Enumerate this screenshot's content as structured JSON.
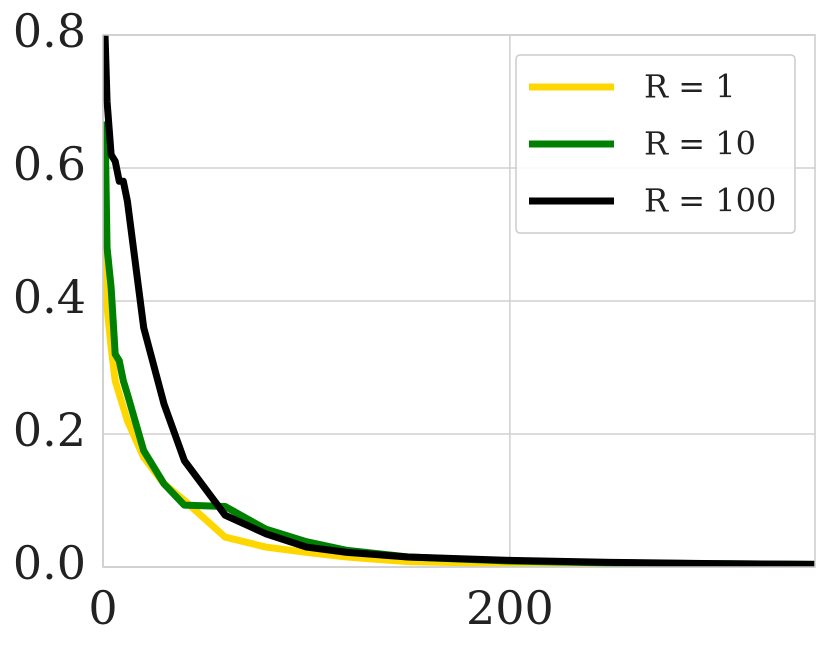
{
  "chart_data": {
    "type": "line",
    "x": [
      1,
      2,
      4,
      6,
      8,
      10,
      12,
      20,
      30,
      40,
      60,
      80,
      100,
      120,
      150,
      200,
      250,
      300,
      350
    ],
    "series": [
      {
        "name": "R = 1",
        "color": "#ffd700",
        "values": [
          0.5,
          0.39,
          0.33,
          0.28,
          0.26,
          0.24,
          0.22,
          0.165,
          0.125,
          0.1,
          0.045,
          0.03,
          0.022,
          0.015,
          0.008,
          0.005,
          0.004,
          0.003,
          0.003
        ]
      },
      {
        "name": "R = 10",
        "color": "#008000",
        "values": [
          0.67,
          0.48,
          0.42,
          0.32,
          0.31,
          0.28,
          0.26,
          0.175,
          0.125,
          0.093,
          0.091,
          0.057,
          0.038,
          0.025,
          0.015,
          0.009,
          0.006,
          0.005,
          0.004
        ]
      },
      {
        "name": "R = 100",
        "color": "#000000",
        "values": [
          0.8,
          0.7,
          0.62,
          0.61,
          0.58,
          0.58,
          0.55,
          0.36,
          0.245,
          0.16,
          0.078,
          0.05,
          0.03,
          0.022,
          0.015,
          0.01,
          0.007,
          0.005,
          0.004
        ]
      }
    ],
    "xlim": [
      0,
      350
    ],
    "xticks": [
      0,
      200
    ],
    "ylim": [
      0,
      0.8
    ],
    "yticks": [
      {
        "value": 0,
        "label": "0.0"
      },
      {
        "value": 0.2,
        "label": "0.2"
      },
      {
        "value": 0.4,
        "label": "0.4"
      },
      {
        "value": 0.6,
        "label": "0.6"
      },
      {
        "value": 0.8,
        "label": "0.8"
      }
    ],
    "grid": true,
    "legend": "upper right"
  }
}
